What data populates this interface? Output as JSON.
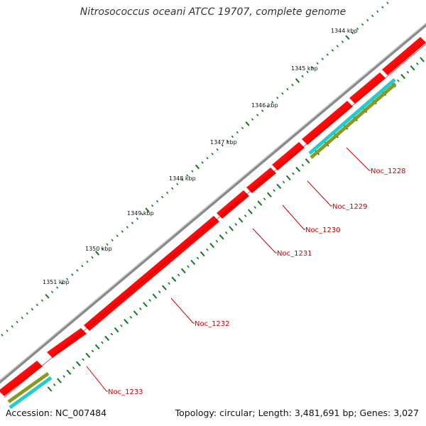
{
  "map": {
    "title": "Nitrosococcus oceani ATCC 19707, complete genome",
    "accession_text": "Accession: NC_007484",
    "summary_text": "Topology: circular; Length: 3,481,691 bp; Genes: 3,027"
  },
  "scale_labels": [
    "1344 kbp",
    "1345 kbp",
    "1346 kbp",
    "1347 kbp",
    "1348 kbp",
    "1349 kbp",
    "1350 kbp",
    "1351 kbp"
  ],
  "genes": [
    "Noc_1228",
    "Noc_1229",
    "Noc_1230",
    "Noc_1231",
    "Noc_1232",
    "Noc_1233"
  ],
  "colors": {
    "backbone": "#8a8a8a",
    "cds": "#ff0000",
    "cds_dark": "#c80000",
    "rna_cyan": "#22cccc",
    "rna_olive": "#8a9a20",
    "ticks": "#0a7a1a",
    "label": "#cc0000"
  }
}
